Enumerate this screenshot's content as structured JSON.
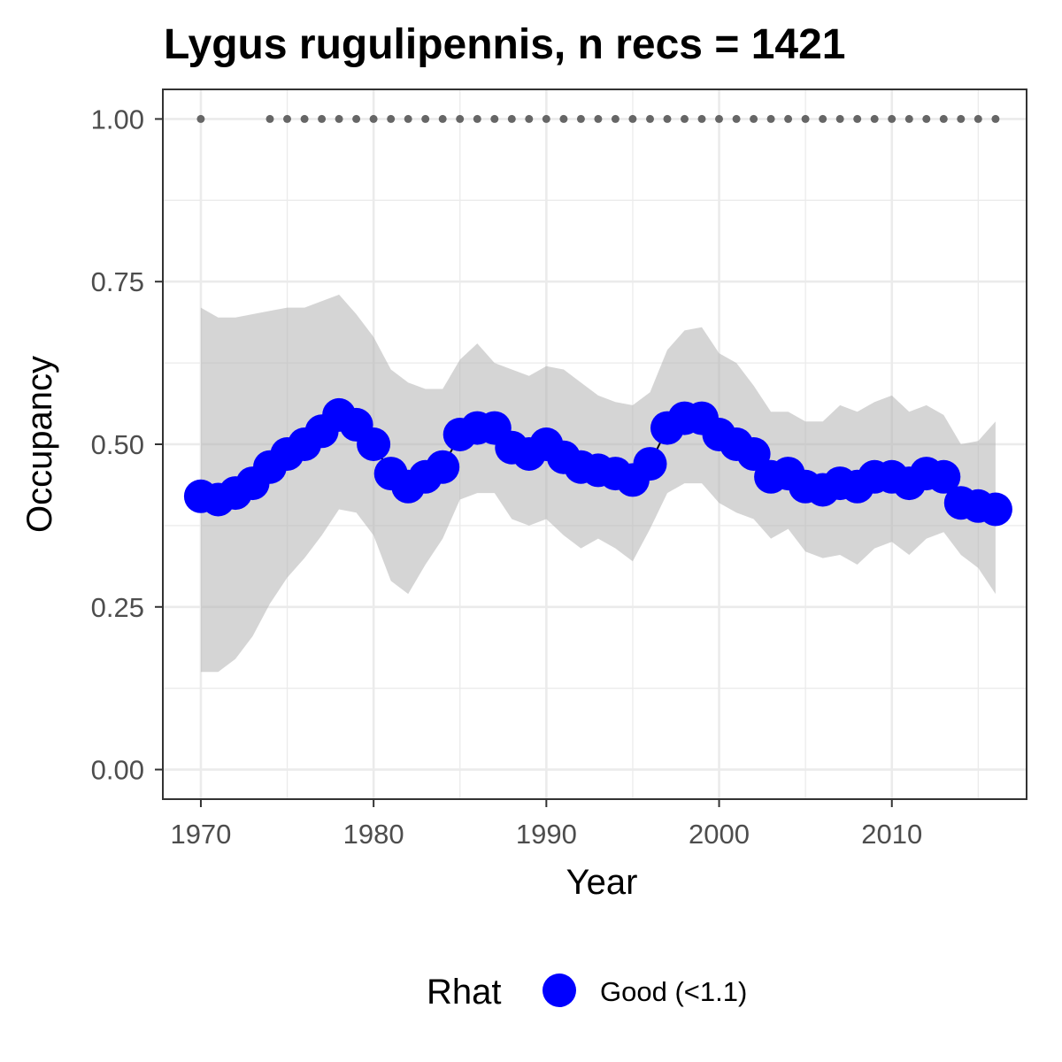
{
  "chart_data": {
    "type": "line",
    "title": "Lygus rugulipennis, n recs = 1421",
    "xlabel": "Year",
    "ylabel": "Occupancy",
    "xlim": [
      1967.8,
      2017.8
    ],
    "ylim": [
      -0.0455,
      1.0455
    ],
    "x_ticks": [
      1970,
      1980,
      1990,
      2000,
      2010
    ],
    "x_tick_labels": [
      "1970",
      "1980",
      "1990",
      "2000",
      "2010"
    ],
    "y_ticks": [
      0,
      0.25,
      0.5,
      0.75,
      1.0
    ],
    "y_tick_labels": [
      "0.00",
      "0.25",
      "0.50",
      "0.75",
      "1.00"
    ],
    "grid": true,
    "colors": {
      "series": "#0000ff",
      "ribbon": "#b3b3b3",
      "record_dots": "#666666",
      "grid": "#ebebeb",
      "panel_border": "#333333"
    },
    "x": [
      1970,
      1971,
      1972,
      1973,
      1974,
      1975,
      1976,
      1977,
      1978,
      1979,
      1980,
      1981,
      1982,
      1983,
      1984,
      1985,
      1986,
      1987,
      1988,
      1989,
      1990,
      1991,
      1992,
      1993,
      1994,
      1995,
      1996,
      1997,
      1998,
      1999,
      2000,
      2001,
      2002,
      2003,
      2004,
      2005,
      2006,
      2007,
      2008,
      2009,
      2010,
      2011,
      2012,
      2013,
      2014,
      2015,
      2016
    ],
    "series": [
      {
        "name": "Occupancy",
        "values": [
          0.42,
          0.415,
          0.425,
          0.44,
          0.465,
          0.485,
          0.5,
          0.52,
          0.545,
          0.53,
          0.5,
          0.455,
          0.435,
          0.45,
          0.465,
          0.515,
          0.525,
          0.525,
          0.495,
          0.485,
          0.5,
          0.48,
          0.465,
          0.46,
          0.455,
          0.445,
          0.47,
          0.525,
          0.54,
          0.54,
          0.515,
          0.5,
          0.485,
          0.45,
          0.455,
          0.435,
          0.43,
          0.44,
          0.435,
          0.45,
          0.45,
          0.44,
          0.455,
          0.45,
          0.41,
          0.405,
          0.4
        ]
      }
    ],
    "ribbon": {
      "lower": [
        0.15,
        0.15,
        0.17,
        0.205,
        0.255,
        0.295,
        0.325,
        0.36,
        0.4,
        0.395,
        0.36,
        0.29,
        0.27,
        0.315,
        0.355,
        0.415,
        0.425,
        0.425,
        0.385,
        0.375,
        0.385,
        0.36,
        0.34,
        0.355,
        0.34,
        0.32,
        0.37,
        0.425,
        0.44,
        0.44,
        0.41,
        0.395,
        0.385,
        0.355,
        0.37,
        0.335,
        0.325,
        0.33,
        0.315,
        0.34,
        0.35,
        0.33,
        0.355,
        0.365,
        0.33,
        0.31,
        0.27
      ],
      "upper": [
        0.71,
        0.695,
        0.695,
        0.7,
        0.705,
        0.71,
        0.71,
        0.72,
        0.73,
        0.7,
        0.665,
        0.615,
        0.595,
        0.585,
        0.585,
        0.63,
        0.655,
        0.625,
        0.615,
        0.605,
        0.62,
        0.615,
        0.595,
        0.575,
        0.565,
        0.56,
        0.58,
        0.645,
        0.675,
        0.68,
        0.64,
        0.625,
        0.59,
        0.55,
        0.55,
        0.535,
        0.535,
        0.56,
        0.55,
        0.565,
        0.575,
        0.55,
        0.56,
        0.545,
        0.5,
        0.505,
        0.535
      ]
    },
    "records": {
      "years": [
        1970,
        1974,
        1975,
        1976,
        1977,
        1978,
        1979,
        1980,
        1981,
        1982,
        1983,
        1984,
        1985,
        1986,
        1987,
        1988,
        1989,
        1990,
        1991,
        1992,
        1993,
        1994,
        1995,
        1996,
        1997,
        1998,
        1999,
        2000,
        2001,
        2002,
        2003,
        2004,
        2005,
        2006,
        2007,
        2008,
        2009,
        2010,
        2011,
        2012,
        2013,
        2014,
        2015,
        2016
      ],
      "value": 1.0
    },
    "legend": {
      "title": "Rhat",
      "position": "bottom",
      "items": [
        {
          "label": "Good (<1.1)",
          "color": "#0000ff"
        }
      ]
    }
  }
}
